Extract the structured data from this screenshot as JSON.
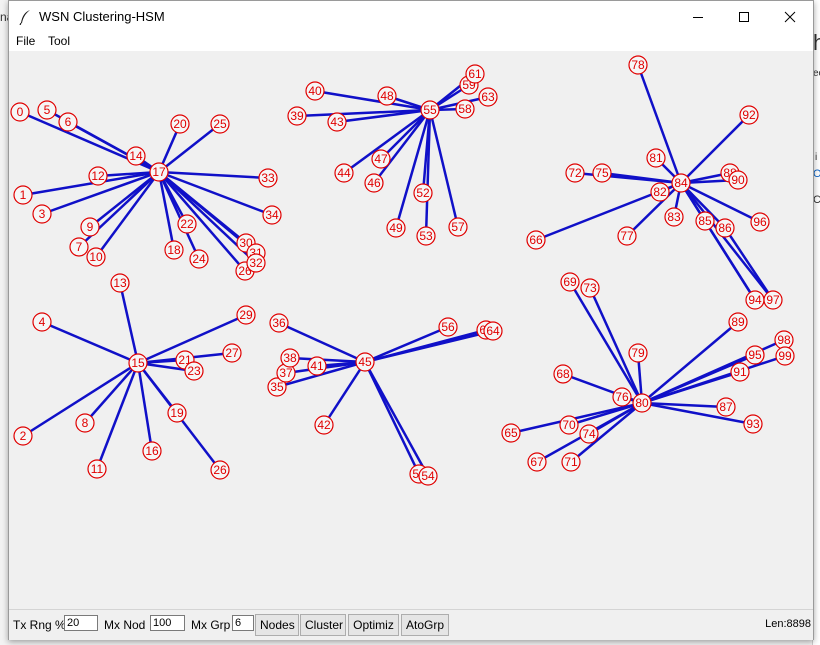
{
  "window": {
    "title": "WSN Clustering-HSM",
    "icon": "feather-icon",
    "controls": [
      "minimize-icon",
      "maximize-icon",
      "close-icon"
    ]
  },
  "background": {
    "left_fragment": "na",
    "right_fragments": [
      "h",
      "ec",
      "i",
      "O",
      "C"
    ]
  },
  "menu": {
    "file": "File",
    "tool": "Tool"
  },
  "graph": {
    "node_color": "#e00000",
    "edge_color": "#1010c8",
    "clusters": [
      {
        "head": "17",
        "members": [
          "0",
          "5",
          "6",
          "14",
          "20",
          "25",
          "12",
          "1",
          "3",
          "9",
          "7",
          "10",
          "22",
          "18",
          "24",
          "33",
          "34",
          "30",
          "31",
          "26",
          "32"
        ]
      },
      {
        "head": "55",
        "members": [
          "40",
          "48",
          "39",
          "43",
          "61",
          "59",
          "63",
          "58",
          "44",
          "47",
          "46",
          "52",
          "49",
          "53",
          "57"
        ]
      },
      {
        "head": "84",
        "members": [
          "78",
          "92",
          "81",
          "72",
          "75",
          "82",
          "89",
          "90",
          "83",
          "85",
          "86",
          "96",
          "77",
          "66",
          "94",
          "97"
        ]
      },
      {
        "head": "15",
        "members": [
          "13",
          "29",
          "4",
          "21",
          "27",
          "23",
          "2",
          "8",
          "19",
          "11",
          "16",
          "26"
        ]
      },
      {
        "head": "45",
        "members": [
          "36",
          "56",
          "60",
          "64",
          "38",
          "37",
          "41",
          "35",
          "42",
          "50",
          "54"
        ]
      },
      {
        "head": "80",
        "members": [
          "69",
          "73",
          "89",
          "98",
          "95",
          "99",
          "91",
          "68",
          "79",
          "76",
          "87",
          "93",
          "70",
          "74",
          "65",
          "67",
          "71"
        ]
      }
    ]
  },
  "toolbar": {
    "tx_range_label": "Tx Rng %",
    "tx_range_value": "20",
    "max_nodes_label": "Mx Nod",
    "max_nodes_value": "100",
    "max_groups_label": "Mx Grp",
    "max_groups_value": "6",
    "nodes_button": "Nodes",
    "cluster_button": "Cluster",
    "optimize_button": "Optimiz",
    "autogroup_button": "AtoGrp",
    "length_text": "Len:8898"
  }
}
